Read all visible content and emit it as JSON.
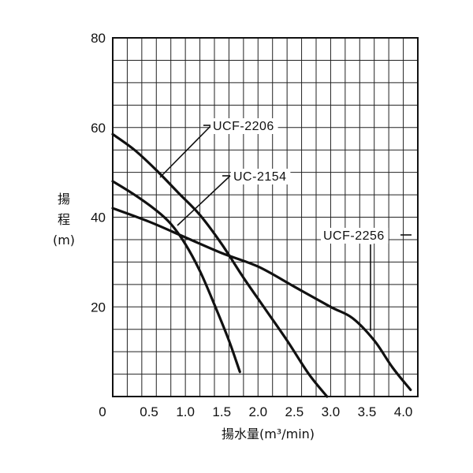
{
  "chart_data": {
    "type": "line",
    "title": "",
    "xlabel": "揚水量(m³/min)",
    "ylabel": "揚程(m)",
    "ylabel_lines": [
      "揚",
      "程",
      "(m)"
    ],
    "xlim": [
      0,
      4.2
    ],
    "ylim": [
      0,
      80
    ],
    "grid": true,
    "x_ticks": [
      {
        "value": 0,
        "label": "0"
      },
      {
        "value": 0.5,
        "label": "0.5"
      },
      {
        "value": 1.0,
        "label": "1.0"
      },
      {
        "value": 1.5,
        "label": "1.5"
      },
      {
        "value": 2.0,
        "label": "2.0"
      },
      {
        "value": 2.5,
        "label": "2.5"
      },
      {
        "value": 3.0,
        "label": "3.0"
      },
      {
        "value": 3.5,
        "label": "3.5"
      },
      {
        "value": 4.0,
        "label": "4.0"
      }
    ],
    "y_ticks": [
      {
        "value": 20,
        "label": "20"
      },
      {
        "value": 40,
        "label": "40"
      },
      {
        "value": 60,
        "label": "60"
      },
      {
        "value": 80,
        "label": "80"
      }
    ],
    "series": [
      {
        "name": "UCF-2206",
        "x": [
          0,
          0.3,
          0.6,
          0.9,
          1.2,
          1.5,
          1.8,
          2.1,
          2.4,
          2.7,
          2.95
        ],
        "y": [
          58.5,
          55,
          50.5,
          45.5,
          40.5,
          34,
          26.5,
          19.5,
          12.5,
          5,
          0
        ]
      },
      {
        "name": "UC-2154",
        "x": [
          0,
          0.3,
          0.6,
          0.8,
          1.0,
          1.2,
          1.4,
          1.6,
          1.75
        ],
        "y": [
          48,
          45,
          41.5,
          38.5,
          34,
          28,
          20.5,
          12.5,
          5.5
        ]
      },
      {
        "name": "UCF-2256",
        "x": [
          0,
          0.5,
          1.0,
          1.5,
          2.0,
          2.5,
          3.0,
          3.3,
          3.6,
          3.85,
          4.1
        ],
        "y": [
          42,
          39,
          35.5,
          32,
          29,
          24.5,
          20,
          17.5,
          12.5,
          6.5,
          1.5
        ]
      }
    ],
    "annotations": [
      {
        "text": "UCF-2206",
        "series": "UCF-2206"
      },
      {
        "text": "UC-2154",
        "series": "UC-2154"
      },
      {
        "text": "UCF-2256",
        "series": "UCF-2256"
      }
    ]
  }
}
